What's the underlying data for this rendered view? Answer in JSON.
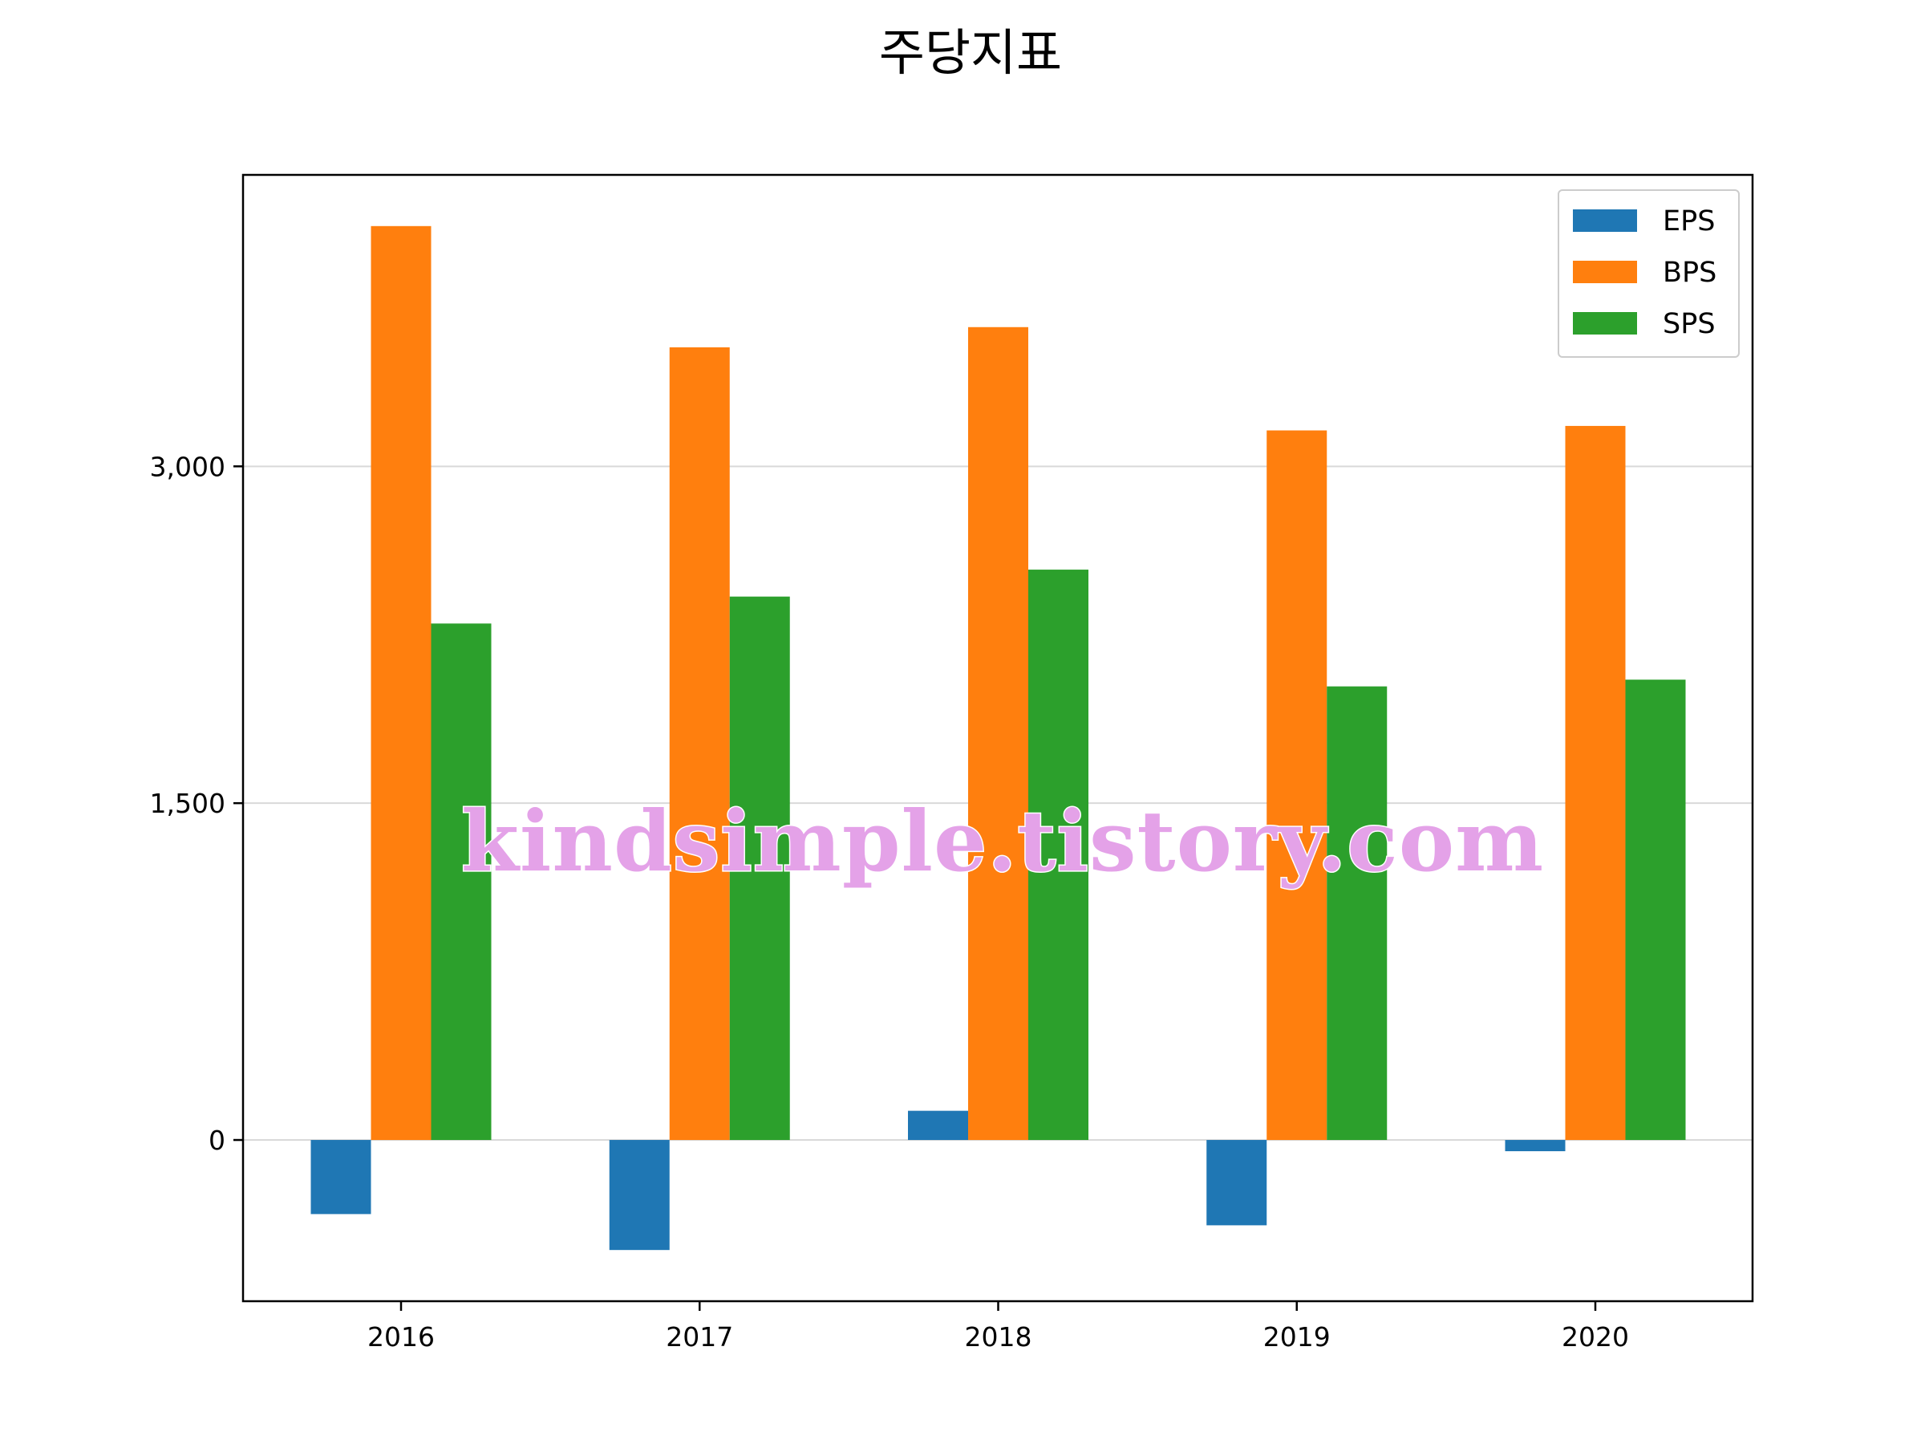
{
  "chart_data": {
    "type": "bar",
    "title": "주당지표",
    "xlabel": "",
    "ylabel": "",
    "categories": [
      "2016",
      "2017",
      "2018",
      "2019",
      "2020"
    ],
    "series": [
      {
        "name": "EPS",
        "color": "#1f77b4",
        "values": [
          -330,
          -490,
          130,
          -380,
          -50
        ]
      },
      {
        "name": "BPS",
        "color": "#ff7f0e",
        "values": [
          4070,
          3530,
          3620,
          3160,
          3180
        ]
      },
      {
        "name": "SPS",
        "color": "#2ca02c",
        "values": [
          2300,
          2420,
          2540,
          2020,
          2050
        ]
      }
    ],
    "ylim": [
      -718,
      4298
    ],
    "yticks": [
      0,
      1500,
      3000
    ],
    "ytick_labels": [
      "0",
      "1,500",
      "3,000"
    ],
    "grid": "y",
    "legend_position": "upper right"
  },
  "watermark": {
    "text": "kindsimple.tistory.com"
  }
}
